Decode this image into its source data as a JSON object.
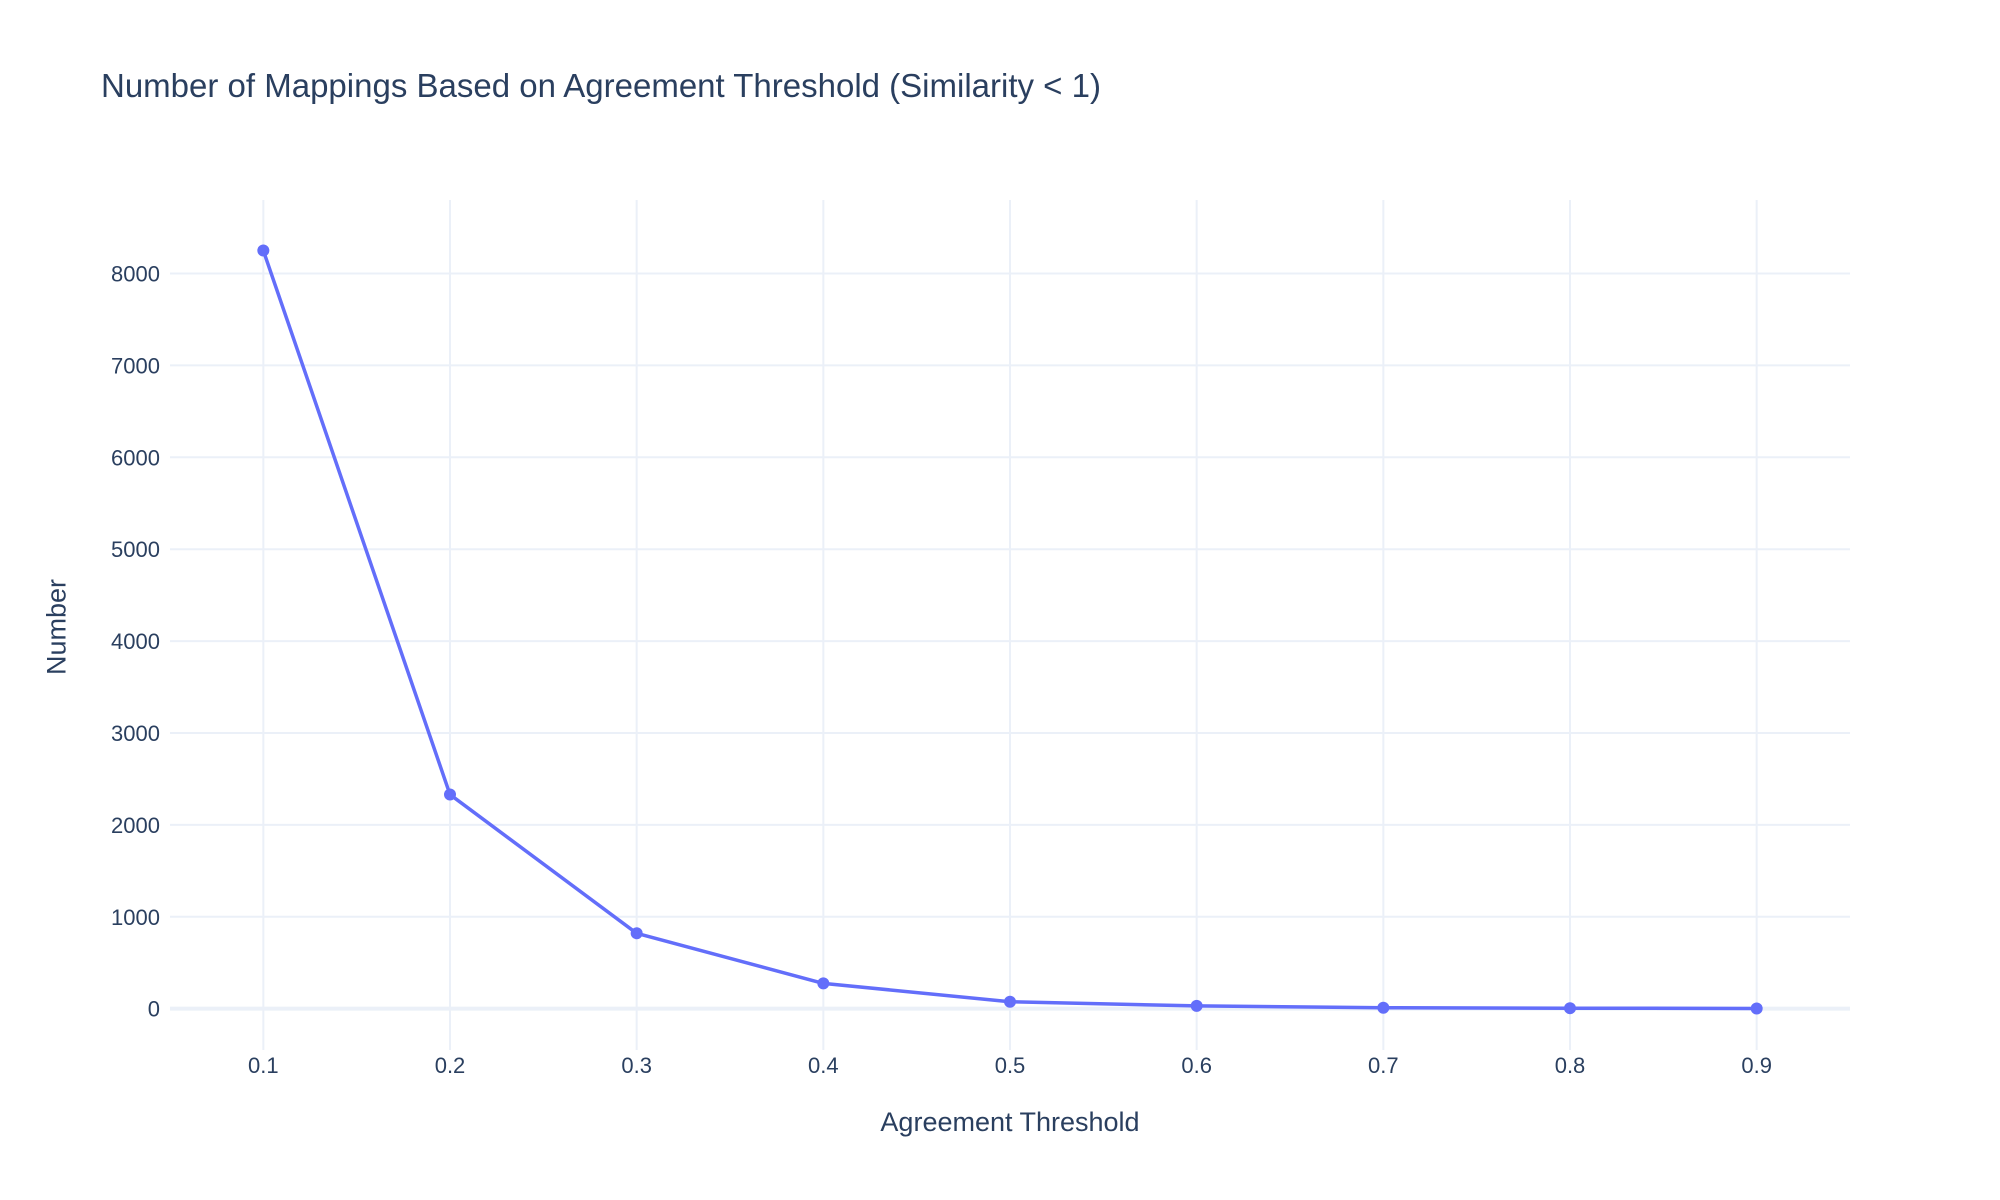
{
  "chart_data": {
    "type": "line",
    "title": "Number of Mappings Based on Agreement Threshold (Similarity < 1)",
    "xlabel": "Agreement Threshold",
    "ylabel": "Number",
    "x": [
      0.1,
      0.2,
      0.3,
      0.4,
      0.5,
      0.6,
      0.7,
      0.8,
      0.9
    ],
    "x_tick_labels": [
      "0.1",
      "0.2",
      "0.3",
      "0.4",
      "0.5",
      "0.6",
      "0.7",
      "0.8",
      "0.9"
    ],
    "xlim": [
      0.05,
      0.95
    ],
    "y_ticks": [
      0,
      1000,
      2000,
      3000,
      4000,
      5000,
      6000,
      7000,
      8000
    ],
    "y_tick_labels": [
      "0",
      "1000",
      "2000",
      "3000",
      "4000",
      "5000",
      "6000",
      "7000",
      "8000"
    ],
    "ylim": [
      -450,
      8800
    ],
    "grid": true,
    "series": [
      {
        "values": [
          8250,
          2330,
          820,
          275,
          75,
          30,
          10,
          5,
          2
        ],
        "color": "#636efa"
      }
    ]
  }
}
